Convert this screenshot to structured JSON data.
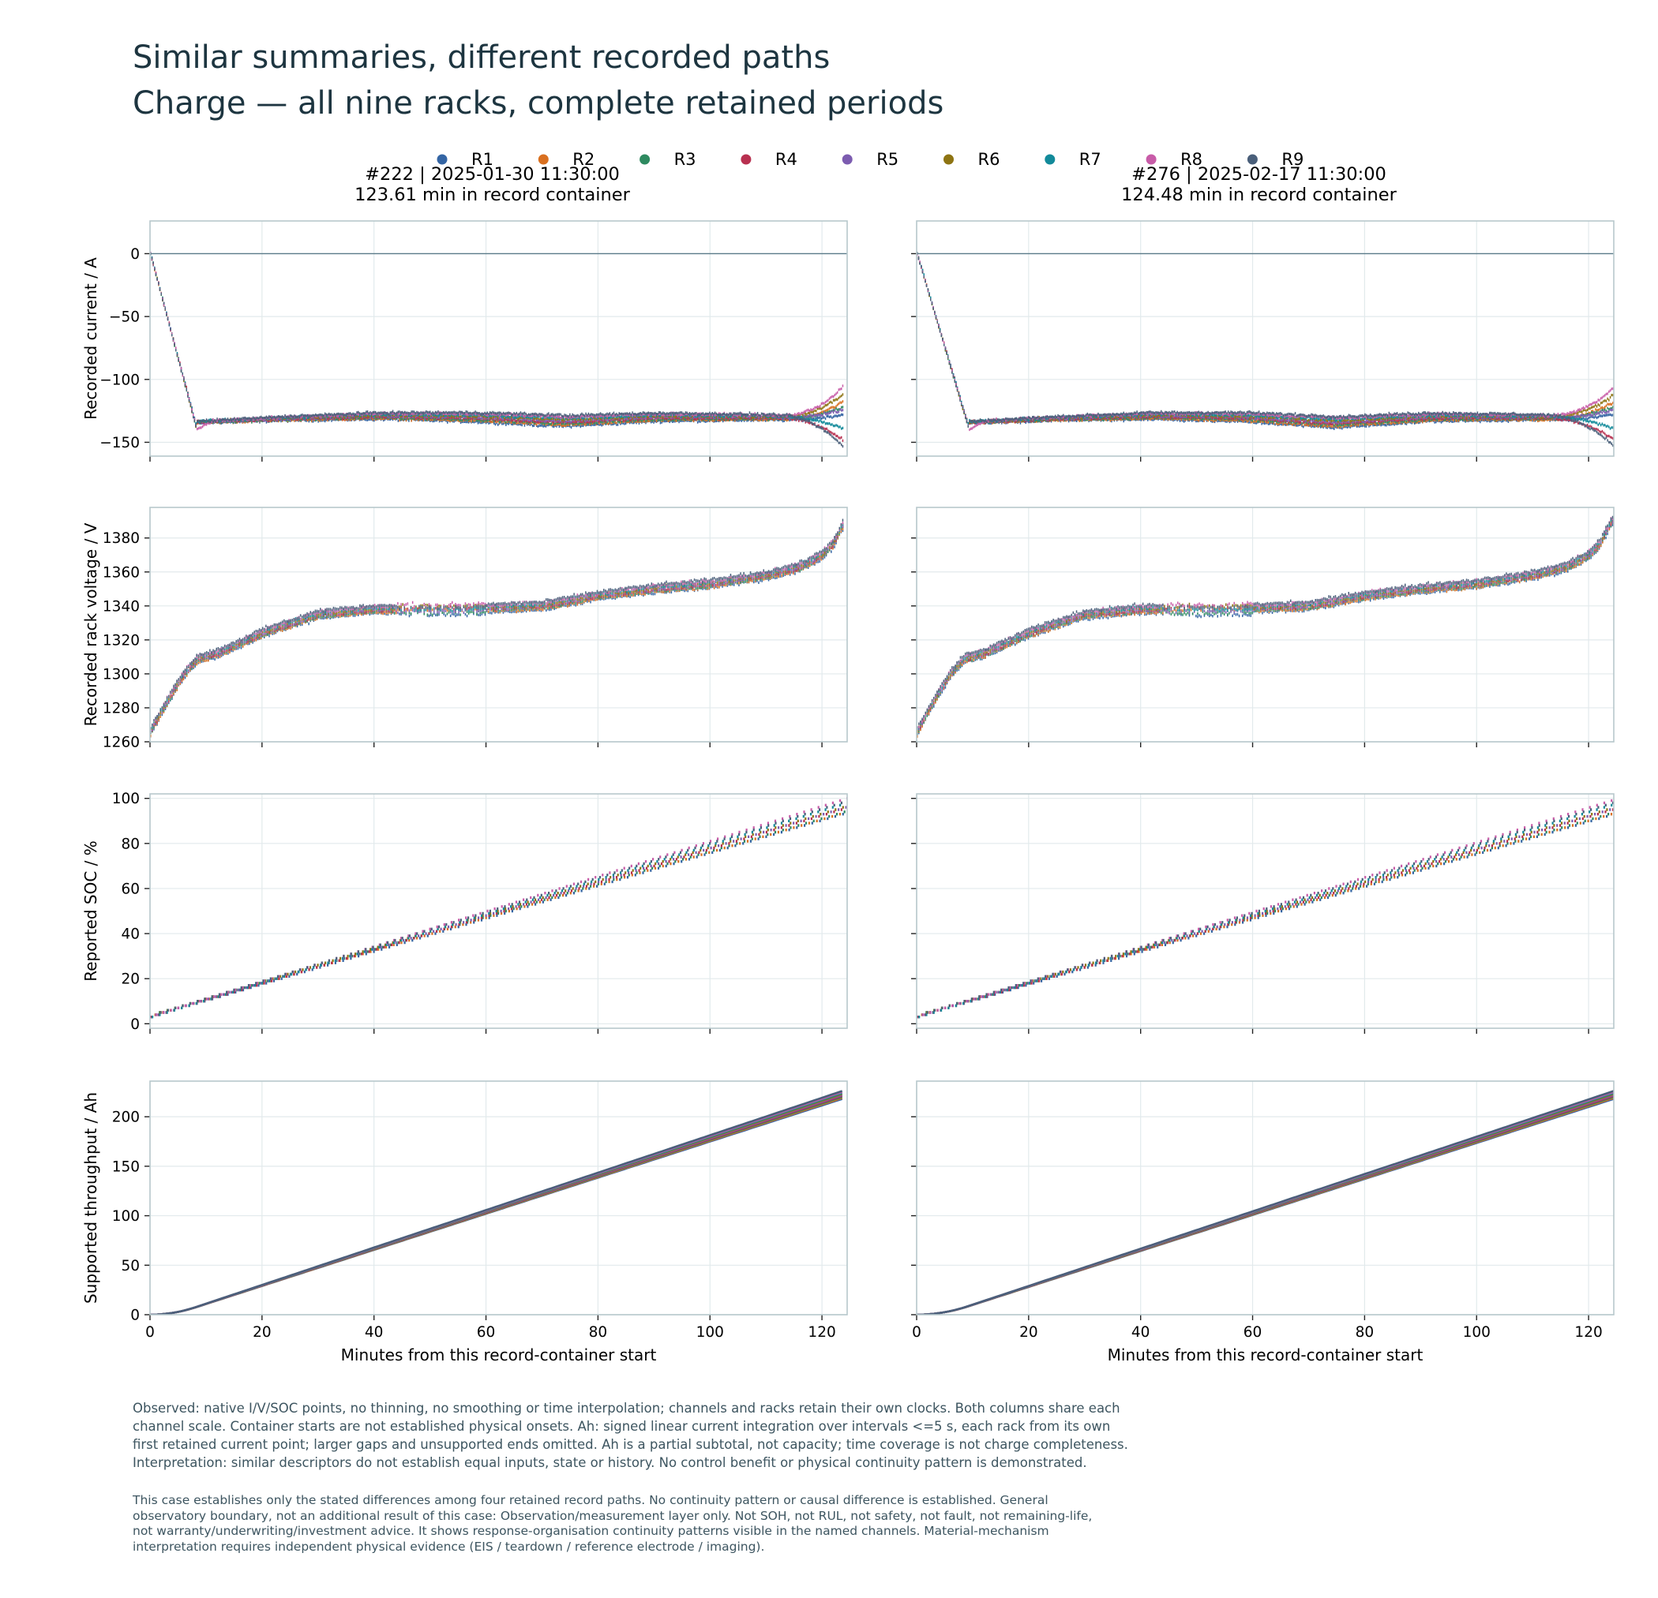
{
  "title_lines": [
    "Similar summaries, different recorded paths",
    "Charge — all nine racks, complete retained periods"
  ],
  "legend": {
    "placement": "top-center",
    "entries": [
      "R1",
      "R2",
      "R3",
      "R4",
      "R5",
      "R6",
      "R7",
      "R8",
      "R9"
    ]
  },
  "colors": {
    "R1": "#3465a4",
    "R2": "#d97020",
    "R3": "#2e8a60",
    "R4": "#b83050",
    "R5": "#7c5cb0",
    "R6": "#8e7412",
    "R7": "#128a9a",
    "R8": "#c85ca8",
    "R9": "#4a5f7a",
    "axis_frame": "#b8c8cc",
    "grid": "#e2eaec",
    "zero_line": "#5a7a88",
    "text_dark": "#1d3540",
    "note_text": "#3d5560"
  },
  "chart_data": {
    "type": "scatter",
    "layout": "4 rows x 2 columns, shared channel scale across columns",
    "columns": [
      {
        "title_line1": "#222  |  2025-01-30 11:30:00",
        "title_line2": "123.61 min in record container",
        "duration_min": 123.61
      },
      {
        "title_line1": "#276  |  2025-02-17 11:30:00",
        "title_line2": "124.48 min in record container",
        "duration_min": 124.48
      }
    ],
    "xlabel": "Minutes from this record-container start",
    "xlim": [
      0,
      124.5
    ],
    "xticks": [
      0,
      20,
      40,
      60,
      80,
      100,
      120
    ],
    "rows": [
      {
        "key": "current",
        "ylabel": "Recorded current / A",
        "ylim": [
          -161,
          26
        ],
        "yticks": [
          0,
          -50,
          -100,
          -150
        ],
        "zero_line": true,
        "ramp_end_min": 8.2,
        "columns": [
          {
            "ramp_end_min": 8.2,
            "plateau": [
              -134,
              -131,
              -129,
              -130,
              -133,
              -130,
              -130,
              -131
            ]
          },
          {
            "ramp_end_min": 9.2,
            "plateau": [
              -134,
              -131,
              -129,
              -130,
              -134,
              -130,
              -130,
              -131
            ]
          }
        ],
        "end_currents": [
          -128,
          -118,
          -122,
          -148,
          -124,
          -112,
          -139,
          -106,
          -153
        ]
      },
      {
        "key": "voltage",
        "ylabel": "Recorded rack voltage / V",
        "ylim": [
          1260,
          1398
        ],
        "yticks": [
          1260,
          1280,
          1300,
          1320,
          1340,
          1360,
          1380
        ],
        "curve": [
          [
            0,
            1266
          ],
          [
            3,
            1284
          ],
          [
            6,
            1300
          ],
          [
            8.5,
            1309
          ],
          [
            12,
            1312
          ],
          [
            20,
            1324
          ],
          [
            30,
            1335
          ],
          [
            40,
            1338
          ],
          [
            55,
            1338
          ],
          [
            70,
            1340
          ],
          [
            80,
            1346
          ],
          [
            90,
            1350
          ],
          [
            100,
            1353
          ],
          [
            110,
            1358
          ],
          [
            116,
            1363
          ],
          [
            120,
            1370
          ],
          [
            122,
            1377
          ],
          [
            124,
            1390
          ]
        ]
      },
      {
        "key": "soc",
        "ylabel": "Reported SOC / %",
        "ylim": [
          -2,
          102
        ],
        "yticks": [
          0,
          20,
          40,
          60,
          80,
          100
        ],
        "start_soc": 3,
        "end_soc_range": [
          93,
          100
        ]
      },
      {
        "key": "ah",
        "ylabel": "Supported throughput / Ah",
        "ylim": [
          0,
          236
        ],
        "yticks": [
          0,
          50,
          100,
          150,
          200
        ],
        "end_ah_range": [
          218,
          226
        ]
      }
    ]
  },
  "notes": [
    [
      "Observed: native I/V/SOC points, no thinning, no smoothing or time interpolation; channels and racks retain their own clocks. Both columns share each",
      "channel scale. Container starts are not established physical onsets. Ah: signed linear current integration over intervals <=5 s, each rack from its own",
      "first retained current point; larger gaps and unsupported ends omitted. Ah is a partial subtotal, not capacity; time coverage is not charge completeness.",
      "Interpretation: similar descriptors do not establish equal inputs, state or history. No control benefit or physical continuity pattern is demonstrated."
    ],
    [
      "This case establishes only the stated differences among four retained record paths. No continuity pattern or causal difference is established. General",
      "observatory boundary, not an additional result of this case: Observation/measurement layer only. Not SOH, not RUL, not safety, not fault, not remaining-life,",
      "not warranty/underwriting/investment advice. It shows response-organisation continuity patterns visible in the named channels. Material-mechanism",
      "interpretation requires independent physical evidence (EIS / teardown / reference electrode / imaging)."
    ]
  ]
}
